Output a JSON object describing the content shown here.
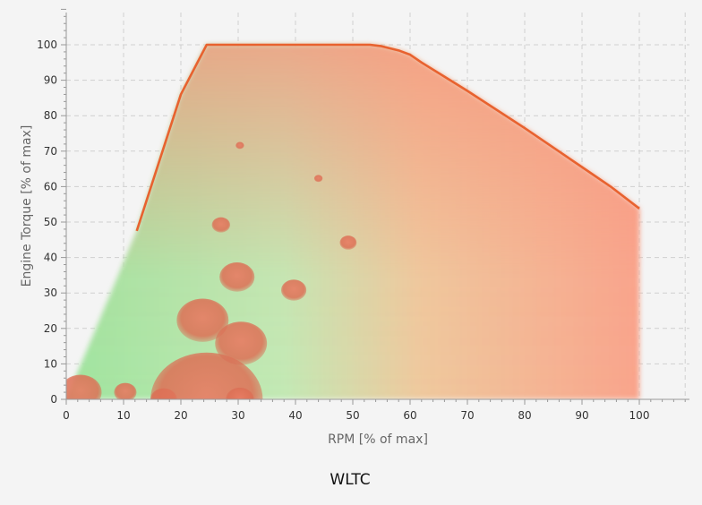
{
  "chart_data": {
    "type": "scatter",
    "title": "WLTC",
    "xlabel": "RPM [% of max]",
    "ylabel": "Engine Torque [% of max]",
    "xlim": [
      0,
      108
    ],
    "ylim": [
      0,
      110
    ],
    "x_ticks": [
      0,
      10,
      20,
      30,
      40,
      50,
      60,
      70,
      80,
      90,
      100
    ],
    "y_ticks": [
      0,
      10,
      20,
      30,
      40,
      50,
      60,
      70,
      80,
      90,
      100
    ],
    "grid": true,
    "max_torque_curve": [
      [
        12.3,
        47.5
      ],
      [
        20,
        86
      ],
      [
        24.5,
        100
      ],
      [
        30,
        100
      ],
      [
        40,
        100
      ],
      [
        50,
        100
      ],
      [
        53,
        100
      ],
      [
        55,
        99.6
      ],
      [
        58,
        98.4
      ],
      [
        60,
        97.2
      ],
      [
        62,
        95
      ],
      [
        70,
        87
      ],
      [
        80,
        76.5
      ],
      [
        90,
        65.5
      ],
      [
        95,
        60
      ],
      [
        100,
        53.8
      ]
    ],
    "bubbles": [
      {
        "x": 2.5,
        "y": 2,
        "size": 3.0
      },
      {
        "x": 10.3,
        "y": 2,
        "size": 1.6
      },
      {
        "x": 17,
        "y": 0,
        "size": 1.9
      },
      {
        "x": 24.5,
        "y": 0,
        "size": 8.0
      },
      {
        "x": 30.3,
        "y": 0,
        "size": 2.0
      },
      {
        "x": 23.8,
        "y": 22.3,
        "size": 3.7
      },
      {
        "x": 30.5,
        "y": 15.8,
        "size": 3.7
      },
      {
        "x": 29.8,
        "y": 34.5,
        "size": 2.5
      },
      {
        "x": 39.7,
        "y": 30.8,
        "size": 1.8
      },
      {
        "x": 27,
        "y": 49.2,
        "size": 1.3
      },
      {
        "x": 49.2,
        "y": 44.2,
        "size": 1.2
      },
      {
        "x": 30.3,
        "y": 71.6,
        "size": 0.6
      },
      {
        "x": 44,
        "y": 62.3,
        "size": 0.6
      }
    ],
    "colors": {
      "curve": "#e8622f",
      "bubble": "#e2765c",
      "low_load": "#a6e6a6",
      "mid_load": "#efc79c",
      "high_load": "#f6917a"
    }
  }
}
